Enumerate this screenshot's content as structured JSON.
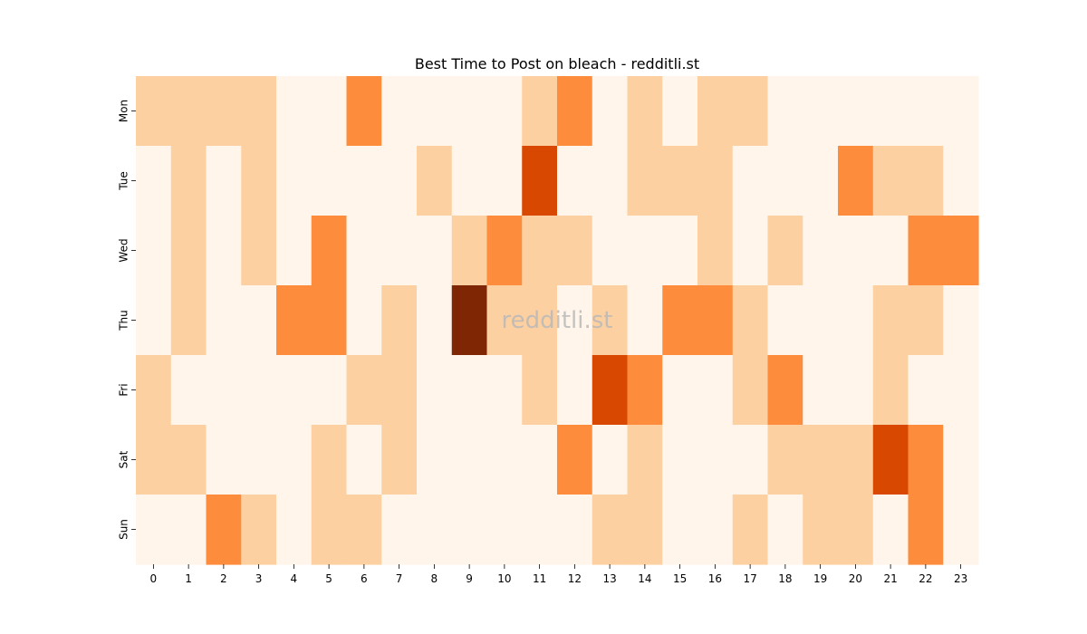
{
  "chart_data": {
    "type": "heatmap",
    "title": "Best Time to Post on bleach - redditli.st",
    "watermark": "redditli.st",
    "x": [
      "0",
      "1",
      "2",
      "3",
      "4",
      "5",
      "6",
      "7",
      "8",
      "9",
      "10",
      "11",
      "12",
      "13",
      "14",
      "15",
      "16",
      "17",
      "18",
      "19",
      "20",
      "21",
      "22",
      "23"
    ],
    "y": [
      "Mon",
      "Tue",
      "Wed",
      "Thu",
      "Fri",
      "Sat",
      "Sun"
    ],
    "values": [
      [
        1,
        1,
        1,
        1,
        0,
        0,
        2,
        0,
        0,
        0,
        0,
        1,
        2,
        0,
        1,
        0,
        1,
        1,
        0,
        0,
        0,
        0,
        0,
        0
      ],
      [
        0,
        1,
        0,
        1,
        0,
        0,
        0,
        0,
        1,
        0,
        0,
        3,
        0,
        0,
        1,
        1,
        1,
        0,
        0,
        0,
        2,
        1,
        1,
        0
      ],
      [
        0,
        1,
        0,
        1,
        0,
        2,
        0,
        0,
        0,
        1,
        2,
        1,
        1,
        0,
        0,
        0,
        1,
        0,
        1,
        0,
        0,
        0,
        2,
        2
      ],
      [
        0,
        1,
        0,
        0,
        2,
        2,
        0,
        1,
        0,
        4,
        1,
        1,
        0,
        1,
        0,
        2,
        2,
        1,
        0,
        0,
        0,
        1,
        1,
        0
      ],
      [
        1,
        0,
        0,
        0,
        0,
        0,
        1,
        1,
        0,
        0,
        0,
        1,
        0,
        3,
        2,
        0,
        0,
        1,
        2,
        0,
        0,
        1,
        0,
        0
      ],
      [
        1,
        1,
        0,
        0,
        0,
        1,
        0,
        1,
        0,
        0,
        0,
        0,
        2,
        0,
        1,
        0,
        0,
        0,
        1,
        1,
        1,
        3,
        2,
        0
      ],
      [
        0,
        0,
        2,
        1,
        0,
        1,
        1,
        0,
        0,
        0,
        0,
        0,
        0,
        1,
        1,
        0,
        0,
        1,
        0,
        1,
        1,
        0,
        2,
        0
      ]
    ],
    "colorscale": [
      "#fff5eb",
      "#fdd0a2",
      "#fd8d3c",
      "#d94801",
      "#7f2704"
    ],
    "legend": "none",
    "grid": false
  }
}
